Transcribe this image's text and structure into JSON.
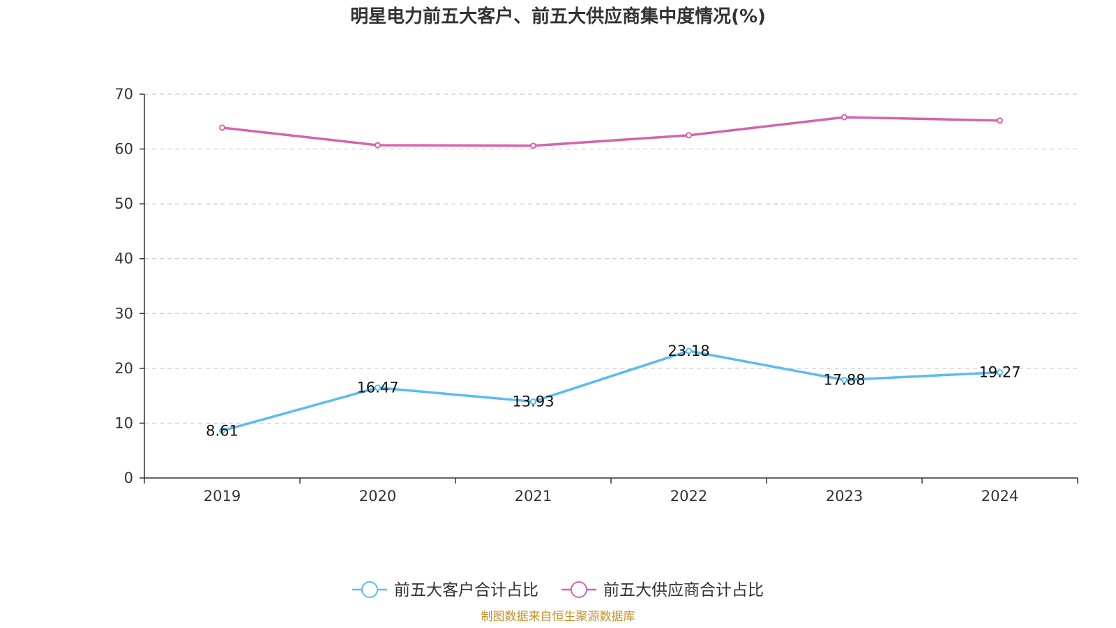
{
  "chart_data": {
    "type": "line",
    "title": "明星电力前五大客户、前五大供应商集中度情况(%)",
    "categories": [
      "2019",
      "2020",
      "2021",
      "2022",
      "2023",
      "2024"
    ],
    "ylim": [
      0,
      70
    ],
    "yticks": [
      0,
      10,
      20,
      30,
      40,
      50,
      60,
      70
    ],
    "grid": true,
    "legend_position": "bottom-center",
    "series": [
      {
        "name": "前五大客户合计占比",
        "color": "#5bbcf0",
        "values": [
          8.61,
          16.47,
          13.93,
          23.18,
          17.88,
          19.27
        ],
        "labels": [
          "8.61",
          "16.47",
          "13.93",
          "23.18",
          "17.88",
          "19.27"
        ],
        "show_labels": true
      },
      {
        "name": "前五大供应商合计占比",
        "color": "#d563ab",
        "values": [
          63.9,
          60.7,
          60.6,
          62.5,
          65.8,
          65.2
        ],
        "show_labels": false
      }
    ]
  },
  "source": "制图数据来自恒生聚源数据库"
}
